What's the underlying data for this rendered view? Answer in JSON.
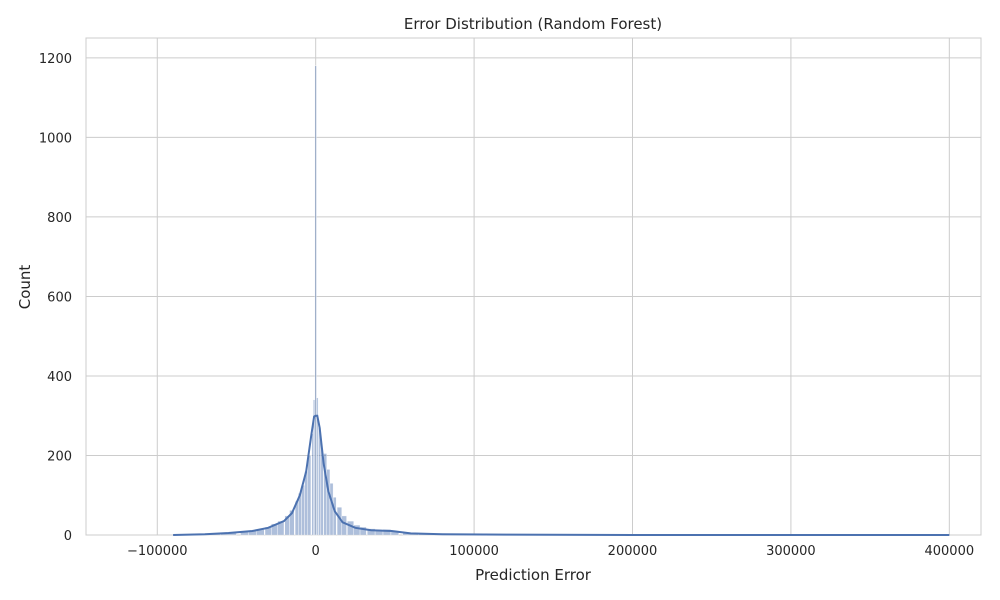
{
  "chart_data": {
    "type": "histogram",
    "title": "Error Distribution (Random Forest)",
    "xlabel": "Prediction Error",
    "ylabel": "Count",
    "xlim": [
      -145000,
      420000
    ],
    "ylim": [
      0,
      1250
    ],
    "x_ticks": [
      -100000,
      0,
      100000,
      200000,
      300000,
      400000
    ],
    "x_tick_labels": [
      "−100000",
      "0",
      "100000",
      "200000",
      "300000",
      "400000"
    ],
    "y_ticks": [
      0,
      200,
      400,
      600,
      800,
      1000,
      1200
    ],
    "y_tick_labels": [
      "0",
      "200",
      "400",
      "600",
      "800",
      "1000",
      "1200"
    ],
    "grid": true,
    "bar_color": "#4c72b0",
    "kde_color": "#4c72b0",
    "bins": [
      {
        "x": -85000,
        "count": 1
      },
      {
        "x": -75000,
        "count": 2
      },
      {
        "x": -65000,
        "count": 3
      },
      {
        "x": -55000,
        "count": 5
      },
      {
        "x": -45000,
        "count": 8
      },
      {
        "x": -40000,
        "count": 10
      },
      {
        "x": -35000,
        "count": 14
      },
      {
        "x": -30000,
        "count": 20
      },
      {
        "x": -26000,
        "count": 28
      },
      {
        "x": -22000,
        "count": 35
      },
      {
        "x": -18000,
        "count": 48
      },
      {
        "x": -15000,
        "count": 62
      },
      {
        "x": -12000,
        "count": 85
      },
      {
        "x": -10000,
        "count": 105
      },
      {
        "x": -8000,
        "count": 125
      },
      {
        "x": -6000,
        "count": 160
      },
      {
        "x": -4000,
        "count": 200
      },
      {
        "x": -2000,
        "count": 255
      },
      {
        "x": -1000,
        "count": 340
      },
      {
        "x": 0,
        "count": 1180
      },
      {
        "x": 1000,
        "count": 345
      },
      {
        "x": 2500,
        "count": 270
      },
      {
        "x": 4000,
        "count": 215
      },
      {
        "x": 6000,
        "count": 205
      },
      {
        "x": 8000,
        "count": 165
      },
      {
        "x": 10000,
        "count": 130
      },
      {
        "x": 12000,
        "count": 95
      },
      {
        "x": 15000,
        "count": 70
      },
      {
        "x": 18000,
        "count": 48
      },
      {
        "x": 22000,
        "count": 35
      },
      {
        "x": 26000,
        "count": 25
      },
      {
        "x": 30000,
        "count": 20
      },
      {
        "x": 35000,
        "count": 16
      },
      {
        "x": 40000,
        "count": 13
      },
      {
        "x": 45000,
        "count": 14
      },
      {
        "x": 50000,
        "count": 10
      },
      {
        "x": 60000,
        "count": 6
      },
      {
        "x": 70000,
        "count": 4
      },
      {
        "x": 80000,
        "count": 3
      },
      {
        "x": 90000,
        "count": 3
      },
      {
        "x": 100000,
        "count": 2
      },
      {
        "x": 115000,
        "count": 1
      },
      {
        "x": 150000,
        "count": 2
      }
    ],
    "kde": [
      {
        "x": -90000,
        "y": 0
      },
      {
        "x": -70000,
        "y": 2
      },
      {
        "x": -55000,
        "y": 5
      },
      {
        "x": -40000,
        "y": 10
      },
      {
        "x": -30000,
        "y": 18
      },
      {
        "x": -20000,
        "y": 35
      },
      {
        "x": -15000,
        "y": 55
      },
      {
        "x": -10000,
        "y": 100
      },
      {
        "x": -6000,
        "y": 160
      },
      {
        "x": -3000,
        "y": 245
      },
      {
        "x": -1000,
        "y": 298
      },
      {
        "x": 0,
        "y": 300
      },
      {
        "x": 1000,
        "y": 300
      },
      {
        "x": 2500,
        "y": 270
      },
      {
        "x": 5000,
        "y": 180
      },
      {
        "x": 8000,
        "y": 110
      },
      {
        "x": 12000,
        "y": 60
      },
      {
        "x": 17000,
        "y": 32
      },
      {
        "x": 25000,
        "y": 18
      },
      {
        "x": 35000,
        "y": 12
      },
      {
        "x": 48000,
        "y": 10
      },
      {
        "x": 60000,
        "y": 4
      },
      {
        "x": 80000,
        "y": 2
      },
      {
        "x": 120000,
        "y": 1
      },
      {
        "x": 200000,
        "y": 0
      },
      {
        "x": 400000,
        "y": 0
      }
    ]
  }
}
